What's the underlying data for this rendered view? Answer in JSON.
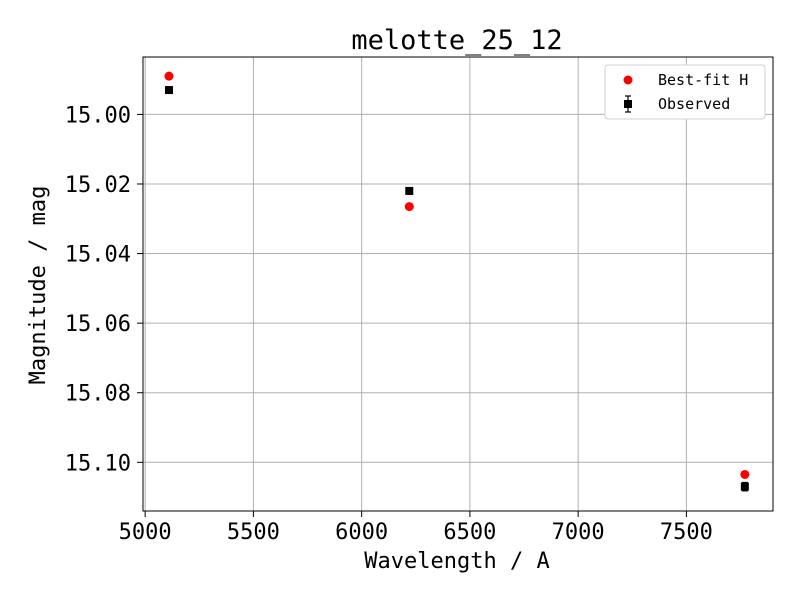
{
  "chart_data": {
    "type": "scatter",
    "title": "melotte_25_12",
    "xlabel": "Wavelength / A",
    "ylabel": "Magnitude / mag",
    "xlim": [
      4990,
      7900
    ],
    "ylim": [
      15.114,
      14.9835
    ],
    "y_inverted": true,
    "grid": true,
    "legend_position": "top-right",
    "xticks": [
      5000,
      5500,
      6000,
      6500,
      7000,
      7500
    ],
    "xtick_labels": [
      "5000",
      "5500",
      "6000",
      "6500",
      "7000",
      "7500"
    ],
    "yticks": [
      15.0,
      15.02,
      15.04,
      15.06,
      15.08,
      15.1
    ],
    "ytick_labels": [
      "15.00",
      "15.02",
      "15.04",
      "15.06",
      "15.08",
      "15.10"
    ],
    "series": [
      {
        "name": "Best-fit H",
        "marker": "circle",
        "color": "#ff0000",
        "x": [
          5110,
          6220,
          7770
        ],
        "y": [
          14.989,
          15.0265,
          15.1035
        ]
      },
      {
        "name": "Observed",
        "marker": "square",
        "color": "#000000",
        "error_bars": true,
        "x": [
          5110,
          6220,
          7770
        ],
        "y": [
          14.993,
          15.022,
          15.107
        ],
        "yerr": [
          0.0008,
          0.0005,
          0.0012
        ]
      }
    ]
  }
}
